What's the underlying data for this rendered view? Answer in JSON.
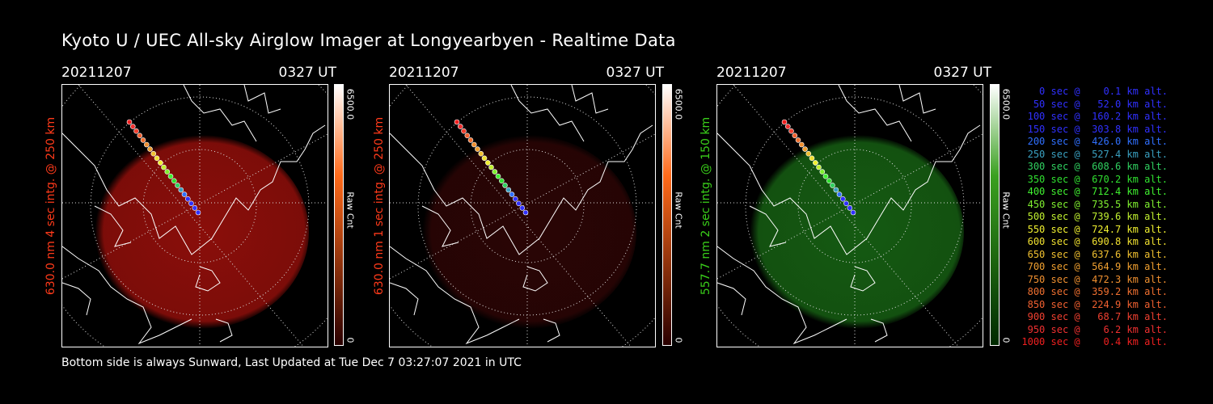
{
  "title": "Kyoto U / UEC All-sky Airglow Imager at Longyearbyen - Realtime Data",
  "footer": "Bottom side is always Sunward, Last Updated at Tue Dec  7 03:27:07 2021 in UTC",
  "panels": [
    {
      "date": "20211207",
      "time": "0327 UT",
      "ylabel": "630.0 nm 4 sec intg. @ 250 km",
      "ylabel_color": "#ff3a1a",
      "cbar_max": "6500.0",
      "cbar_min": "0",
      "cbar_unit": "Raw Cnt",
      "glow": "#8a0e0a",
      "cbar_top": "#ffffff",
      "cbar_mid": "#ff6a1a",
      "cbar_bot": "#2a0000"
    },
    {
      "date": "20211207",
      "time": "0327 UT",
      "ylabel": "630.0 nm 1 sec intg. @ 250 km",
      "ylabel_color": "#ff3a1a",
      "cbar_max": "6500.0",
      "cbar_min": "0",
      "cbar_unit": "Raw Cnt",
      "glow": "#2a0505",
      "cbar_top": "#ffffff",
      "cbar_mid": "#ff6a1a",
      "cbar_bot": "#2a0000"
    },
    {
      "date": "20211207",
      "time": "0327 UT",
      "ylabel": "557.7 nm 2 sec intg. @ 150 km",
      "ylabel_color": "#3ad01a",
      "cbar_max": "6500.0",
      "cbar_min": "0",
      "cbar_unit": "Raw Cnt",
      "glow": "#155a12",
      "cbar_top": "#ffffff",
      "cbar_mid": "#3aa020",
      "cbar_bot": "#002a00"
    }
  ],
  "legend": [
    {
      "text": "   0 sec @    0.1 km alt.",
      "color": "#3030ff"
    },
    {
      "text": "  50 sec @   52.0 km alt.",
      "color": "#3030ff"
    },
    {
      "text": " 100 sec @  160.2 km alt.",
      "color": "#3030ff"
    },
    {
      "text": " 150 sec @  303.8 km alt.",
      "color": "#3030ff"
    },
    {
      "text": " 200 sec @  426.0 km alt.",
      "color": "#3070ff"
    },
    {
      "text": " 250 sec @  527.4 km alt.",
      "color": "#3aa0c0"
    },
    {
      "text": " 300 sec @  608.6 km alt.",
      "color": "#30d060"
    },
    {
      "text": " 350 sec @  670.2 km alt.",
      "color": "#30e030"
    },
    {
      "text": " 400 sec @  712.4 km alt.",
      "color": "#40f030"
    },
    {
      "text": " 450 sec @  735.5 km alt.",
      "color": "#80f030"
    },
    {
      "text": " 500 sec @  739.6 km alt.",
      "color": "#c0f030"
    },
    {
      "text": " 550 sec @  724.7 km alt.",
      "color": "#f0f030"
    },
    {
      "text": " 600 sec @  690.8 km alt.",
      "color": "#f0e030"
    },
    {
      "text": " 650 sec @  637.6 km alt.",
      "color": "#f0c030"
    },
    {
      "text": " 700 sec @  564.9 km alt.",
      "color": "#f0a030"
    },
    {
      "text": " 750 sec @  472.3 km alt.",
      "color": "#f09030"
    },
    {
      "text": " 800 sec @  359.2 km alt.",
      "color": "#f07030"
    },
    {
      "text": " 850 sec @  224.9 km alt.",
      "color": "#f06030"
    },
    {
      "text": " 900 sec @   68.7 km alt.",
      "color": "#f04030"
    },
    {
      "text": " 950 sec @    6.2 km alt.",
      "color": "#f03030"
    },
    {
      "text": "1000 sec @    0.4 km alt.",
      "color": "#f02020"
    }
  ]
}
